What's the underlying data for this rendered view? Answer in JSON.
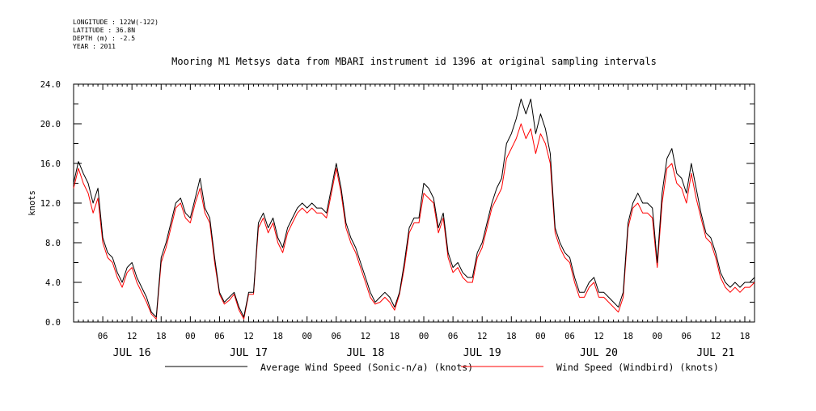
{
  "meta": {
    "longitude": "LONGITUDE : 122W(-122)",
    "latitude": "LATITUDE : 36.8N",
    "depth": "DEPTH (m) : -2.5",
    "year": "YEAR : 2011"
  },
  "chart_data": {
    "type": "line",
    "title": "Mooring M1 Metsys data from MBARI instrument id 1396 at original sampling intervals",
    "ylabel": "knots",
    "xlabel": "",
    "ylim": [
      0,
      24
    ],
    "xlim_hours": [
      0,
      140
    ],
    "x_unit": "hours since JUL 16 00:00 (2011)",
    "y_ticks": [
      "0.0",
      "4.0",
      "8.0",
      "12.0",
      "16.0",
      "20.0",
      "24.0"
    ],
    "x_hour_ticks": [
      {
        "label": "06",
        "hour": 6
      },
      {
        "label": "12",
        "hour": 12
      },
      {
        "label": "18",
        "hour": 18
      },
      {
        "label": "00",
        "hour": 24
      },
      {
        "label": "06",
        "hour": 30
      },
      {
        "label": "12",
        "hour": 36
      },
      {
        "label": "18",
        "hour": 42
      },
      {
        "label": "00",
        "hour": 48
      },
      {
        "label": "06",
        "hour": 54
      },
      {
        "label": "12",
        "hour": 60
      },
      {
        "label": "18",
        "hour": 66
      },
      {
        "label": "00",
        "hour": 72
      },
      {
        "label": "06",
        "hour": 78
      },
      {
        "label": "12",
        "hour": 84
      },
      {
        "label": "18",
        "hour": 90
      },
      {
        "label": "00",
        "hour": 96
      },
      {
        "label": "06",
        "hour": 102
      },
      {
        "label": "12",
        "hour": 108
      },
      {
        "label": "18",
        "hour": 114
      },
      {
        "label": "00",
        "hour": 120
      },
      {
        "label": "06",
        "hour": 126
      },
      {
        "label": "12",
        "hour": 132
      },
      {
        "label": "18",
        "hour": 138
      }
    ],
    "day_labels": [
      {
        "label": "JUL 16",
        "hour": 12
      },
      {
        "label": "JUL 17",
        "hour": 36
      },
      {
        "label": "JUL 18",
        "hour": 60
      },
      {
        "label": "JUL 19",
        "hour": 84
      },
      {
        "label": "JUL 20",
        "hour": 108
      },
      {
        "label": "JUL 21",
        "hour": 132
      }
    ],
    "grid": false,
    "legend": "bottom",
    "series": [
      {
        "name": "Average Wind Speed (Sonic-n/a) (knots)",
        "color": "#000000",
        "x": [
          0,
          1,
          2,
          3,
          4,
          5,
          6,
          7,
          8,
          9,
          10,
          11,
          12,
          13,
          14,
          15,
          16,
          17,
          18,
          19,
          20,
          21,
          22,
          23,
          24,
          25,
          26,
          27,
          28,
          29,
          30,
          31,
          32,
          33,
          34,
          35,
          36,
          37,
          38,
          39,
          40,
          41,
          42,
          43,
          44,
          45,
          46,
          47,
          48,
          49,
          50,
          51,
          52,
          53,
          54,
          55,
          56,
          57,
          58,
          59,
          60,
          61,
          62,
          63,
          64,
          65,
          66,
          67,
          68,
          69,
          70,
          71,
          72,
          73,
          74,
          75,
          76,
          77,
          78,
          79,
          80,
          81,
          82,
          83,
          84,
          85,
          86,
          87,
          88,
          89,
          90,
          91,
          92,
          93,
          94,
          95,
          96,
          97,
          98,
          99,
          100,
          101,
          102,
          103,
          104,
          105,
          106,
          107,
          108,
          109,
          110,
          111,
          112,
          113,
          114,
          115,
          116,
          117,
          118,
          119,
          120,
          121,
          122,
          123,
          124,
          125,
          126,
          127,
          128,
          129,
          130,
          131,
          132,
          133,
          134,
          135,
          136,
          137,
          138,
          139,
          140
        ],
        "y": [
          14.0,
          16.2,
          15.0,
          14.0,
          12.0,
          13.5,
          8.5,
          7.0,
          6.5,
          5.0,
          4.0,
          5.5,
          6.0,
          4.5,
          3.5,
          2.5,
          1.0,
          0.5,
          6.5,
          8.0,
          10.0,
          12.0,
          12.5,
          11.0,
          10.5,
          12.5,
          14.5,
          11.5,
          10.5,
          6.5,
          3.0,
          2.0,
          2.5,
          3.0,
          1.5,
          0.5,
          3.0,
          3.0,
          10.0,
          11.0,
          9.5,
          10.5,
          8.5,
          7.5,
          9.5,
          10.5,
          11.5,
          12.0,
          11.5,
          12.0,
          11.5,
          11.5,
          11.0,
          13.5,
          16.0,
          13.5,
          10.0,
          8.5,
          7.5,
          6.0,
          4.5,
          3.0,
          2.0,
          2.5,
          3.0,
          2.5,
          1.5,
          3.0,
          6.0,
          9.5,
          10.5,
          10.5,
          14.0,
          13.5,
          12.5,
          9.5,
          11.0,
          7.0,
          5.5,
          6.0,
          5.0,
          4.5,
          4.5,
          7.0,
          8.0,
          10.0,
          12.0,
          13.5,
          14.5,
          18.0,
          19.0,
          20.5,
          22.5,
          21.0,
          22.5,
          19.0,
          21.0,
          19.5,
          17.0,
          9.5,
          8.0,
          7.0,
          6.5,
          4.5,
          3.0,
          3.0,
          4.0,
          4.5,
          3.0,
          3.0,
          2.5,
          2.0,
          1.5,
          3.0,
          10.0,
          12.0,
          13.0,
          12.0,
          12.0,
          11.5,
          6.0,
          13.0,
          16.5,
          17.5,
          15.0,
          14.5,
          13.0,
          16.0,
          13.5,
          11.0,
          9.0,
          8.5,
          7.0,
          5.0,
          4.0,
          3.5,
          4.0,
          3.5,
          4.0,
          4.0,
          4.5
        ]
      },
      {
        "name": "Wind Speed (Windbird) (knots)",
        "color": "#ff0000",
        "x": [
          0,
          1,
          2,
          3,
          4,
          5,
          6,
          7,
          8,
          9,
          10,
          11,
          12,
          13,
          14,
          15,
          16,
          17,
          18,
          19,
          20,
          21,
          22,
          23,
          24,
          25,
          26,
          27,
          28,
          29,
          30,
          31,
          32,
          33,
          34,
          35,
          36,
          37,
          38,
          39,
          40,
          41,
          42,
          43,
          44,
          45,
          46,
          47,
          48,
          49,
          50,
          51,
          52,
          53,
          54,
          55,
          56,
          57,
          58,
          59,
          60,
          61,
          62,
          63,
          64,
          65,
          66,
          67,
          68,
          69,
          70,
          71,
          72,
          73,
          74,
          75,
          76,
          77,
          78,
          79,
          80,
          81,
          82,
          83,
          84,
          85,
          86,
          87,
          88,
          89,
          90,
          91,
          92,
          93,
          94,
          95,
          96,
          97,
          98,
          99,
          100,
          101,
          102,
          103,
          104,
          105,
          106,
          107,
          108,
          109,
          110,
          111,
          112,
          113,
          114,
          115,
          116,
          117,
          118,
          119,
          120,
          121,
          122,
          123,
          124,
          125,
          126,
          127,
          128,
          129,
          130,
          131,
          132,
          133,
          134,
          135,
          136,
          137,
          138,
          139,
          140
        ],
        "y": [
          13.5,
          15.5,
          14.0,
          13.0,
          11.0,
          12.5,
          8.0,
          6.5,
          6.0,
          4.5,
          3.5,
          5.0,
          5.5,
          4.0,
          3.0,
          2.0,
          0.8,
          0.3,
          6.0,
          7.5,
          9.5,
          11.5,
          12.0,
          10.5,
          10.0,
          12.0,
          13.5,
          11.0,
          10.0,
          6.0,
          2.8,
          1.8,
          2.2,
          2.8,
          1.2,
          0.3,
          2.8,
          2.8,
          9.5,
          10.5,
          9.0,
          10.0,
          8.0,
          7.0,
          9.0,
          10.0,
          11.0,
          11.5,
          11.0,
          11.5,
          11.0,
          11.0,
          10.5,
          13.0,
          15.5,
          13.0,
          9.5,
          8.0,
          7.0,
          5.5,
          4.0,
          2.5,
          1.8,
          2.0,
          2.5,
          2.0,
          1.2,
          2.8,
          5.5,
          9.0,
          10.0,
          10.0,
          13.0,
          12.5,
          12.0,
          9.0,
          10.5,
          6.5,
          5.0,
          5.5,
          4.5,
          4.0,
          4.0,
          6.5,
          7.5,
          9.5,
          11.5,
          12.5,
          13.5,
          16.5,
          17.5,
          18.5,
          20.0,
          18.5,
          19.5,
          17.0,
          19.0,
          18.0,
          16.0,
          9.0,
          7.5,
          6.5,
          6.0,
          4.0,
          2.5,
          2.5,
          3.5,
          4.0,
          2.5,
          2.5,
          2.0,
          1.5,
          1.0,
          2.5,
          9.5,
          11.5,
          12.0,
          11.0,
          11.0,
          10.5,
          5.5,
          12.0,
          15.5,
          16.0,
          14.0,
          13.5,
          12.0,
          15.0,
          12.5,
          10.5,
          8.5,
          8.0,
          6.5,
          4.5,
          3.5,
          3.0,
          3.5,
          3.0,
          3.5,
          3.5,
          4.0
        ]
      }
    ]
  }
}
